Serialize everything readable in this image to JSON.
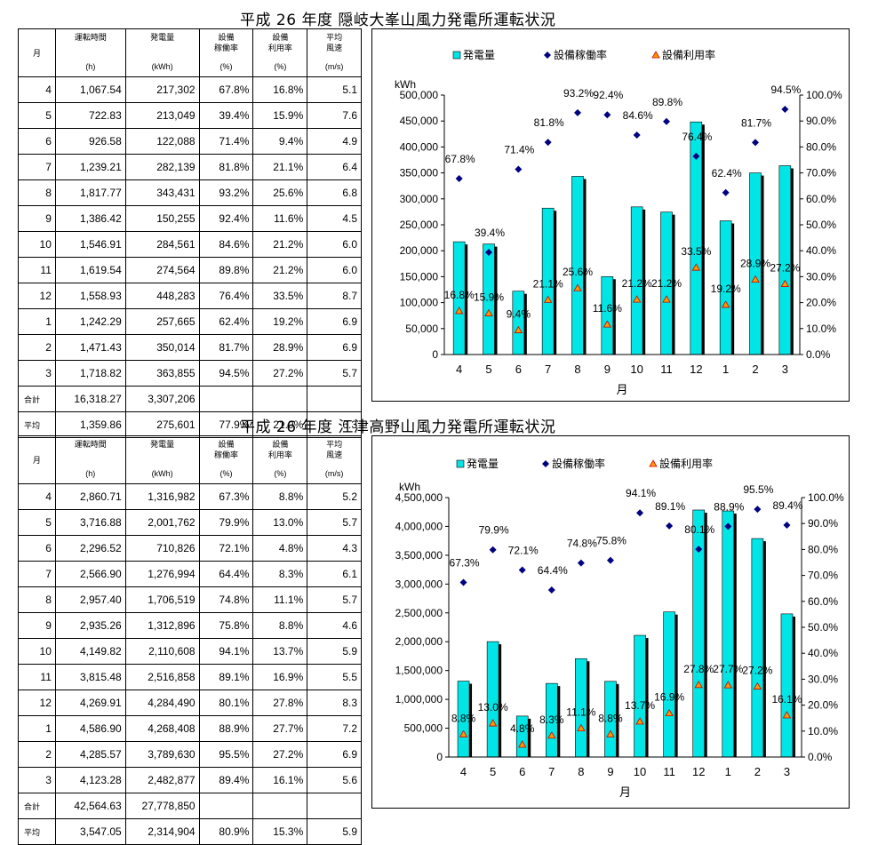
{
  "sections": [
    {
      "title": "平成  26  年度  隠岐大峯山風力発電所運転状況",
      "table": {
        "headers": [
          {
            "name": "月",
            "unit": ""
          },
          {
            "name": "運転時間",
            "unit": "(h)"
          },
          {
            "name": "発電量",
            "unit": "(kWh)"
          },
          {
            "name": "設備\n稼働率",
            "unit": "(%)"
          },
          {
            "name": "設備\n利用率",
            "unit": "(%)"
          },
          {
            "name": "平均\n風速",
            "unit": "(m/s)"
          }
        ],
        "rows": [
          [
            "4",
            "1,067.54",
            "217,302",
            "67.8%",
            "16.8%",
            "5.1"
          ],
          [
            "5",
            "722.83",
            "213,049",
            "39.4%",
            "15.9%",
            "7.6"
          ],
          [
            "6",
            "926.58",
            "122,088",
            "71.4%",
            "9.4%",
            "4.9"
          ],
          [
            "7",
            "1,239.21",
            "282,139",
            "81.8%",
            "21.1%",
            "6.4"
          ],
          [
            "8",
            "1,817.77",
            "343,431",
            "93.2%",
            "25.6%",
            "6.8"
          ],
          [
            "9",
            "1,386.42",
            "150,255",
            "92.4%",
            "11.6%",
            "4.5"
          ],
          [
            "10",
            "1,546.91",
            "284,561",
            "84.6%",
            "21.2%",
            "6.0"
          ],
          [
            "11",
            "1,619.54",
            "274,564",
            "89.8%",
            "21.2%",
            "6.0"
          ],
          [
            "12",
            "1,558.93",
            "448,283",
            "76.4%",
            "33.5%",
            "8.7"
          ],
          [
            "1",
            "1,242.29",
            "257,665",
            "62.4%",
            "19.2%",
            "6.9"
          ],
          [
            "2",
            "1,471.43",
            "350,014",
            "81.7%",
            "28.9%",
            "6.9"
          ],
          [
            "3",
            "1,718.82",
            "363,855",
            "94.5%",
            "27.2%",
            "5.7"
          ]
        ],
        "total": [
          "合計",
          "16,318.27",
          "3,307,206",
          "",
          "",
          ""
        ],
        "average": [
          "平均",
          "1,359.86",
          "275,601",
          "77.9%",
          "21.0%",
          "6.3"
        ]
      },
      "chart_data": {
        "type": "bar",
        "categories": [
          "4",
          "5",
          "6",
          "7",
          "8",
          "9",
          "10",
          "11",
          "12",
          "1",
          "2",
          "3"
        ],
        "series": [
          {
            "name": "発電量",
            "type": "bar",
            "axis": "left",
            "values": [
              217302,
              213049,
              122088,
              282139,
              343431,
              150255,
              284561,
              274564,
              448283,
              257665,
              350014,
              363855
            ]
          },
          {
            "name": "設備稼働率",
            "type": "scatter",
            "axis": "right",
            "values": [
              67.8,
              39.4,
              71.4,
              81.8,
              93.2,
              92.4,
              84.6,
              89.8,
              76.4,
              62.4,
              81.7,
              94.5
            ],
            "labels": [
              "67.8%",
              "39.4%",
              "71.4%",
              "81.8%",
              "93.2%",
              "92.4%",
              "84.6%",
              "89.8%",
              "76.4%",
              "62.4%",
              "81.7%",
              "94.5%"
            ]
          },
          {
            "name": "設備利用率",
            "type": "scatter",
            "axis": "right",
            "values": [
              16.8,
              15.9,
              9.4,
              21.1,
              25.6,
              11.6,
              21.2,
              21.2,
              33.5,
              19.2,
              28.9,
              27.2
            ],
            "labels": [
              "16.8%",
              "15.9%",
              "9.4%",
              "21.1%",
              "25.6%",
              "11.6%",
              "21.2%",
              "21.2%",
              "33.5%",
              "19.2%",
              "28.9%",
              "27.2%"
            ]
          }
        ],
        "xlabel": "月",
        "ylabel": "kWh",
        "ylim": [
          0,
          500000
        ],
        "ystep": 50000,
        "y2lim": [
          0,
          100
        ],
        "y2step": 10,
        "yticks": [
          "0",
          "50,000",
          "100,000",
          "150,000",
          "200,000",
          "250,000",
          "300,000",
          "350,000",
          "400,000",
          "450,000",
          "500,000"
        ],
        "y2ticks": [
          "0.0%",
          "10.0%",
          "20.0%",
          "30.0%",
          "40.0%",
          "50.0%",
          "60.0%",
          "70.0%",
          "80.0%",
          "90.0%",
          "100.0%"
        ],
        "legend": "top",
        "grid": false
      }
    },
    {
      "title": "平成  26  年度  江津高野山風力発電所運転状況",
      "table": {
        "headers": [
          {
            "name": "月",
            "unit": ""
          },
          {
            "name": "運転時間",
            "unit": "(h)"
          },
          {
            "name": "発電量",
            "unit": "(kWh)"
          },
          {
            "name": "設備\n稼働率",
            "unit": "(%)"
          },
          {
            "name": "設備\n利用率",
            "unit": "(%)"
          },
          {
            "name": "平均\n風速",
            "unit": "(m/s)"
          }
        ],
        "rows": [
          [
            "4",
            "2,860.71",
            "1,316,982",
            "67.3%",
            "8.8%",
            "5.2"
          ],
          [
            "5",
            "3,716.88",
            "2,001,762",
            "79.9%",
            "13.0%",
            "5.7"
          ],
          [
            "6",
            "2,296.52",
            "710,826",
            "72.1%",
            "4.8%",
            "4.3"
          ],
          [
            "7",
            "2,566.90",
            "1,276,994",
            "64.4%",
            "8.3%",
            "6.1"
          ],
          [
            "8",
            "2,957.40",
            "1,706,519",
            "74.8%",
            "11.1%",
            "5.7"
          ],
          [
            "9",
            "2,935.26",
            "1,312,896",
            "75.8%",
            "8.8%",
            "4.6"
          ],
          [
            "10",
            "4,149.82",
            "2,110,608",
            "94.1%",
            "13.7%",
            "5.9"
          ],
          [
            "11",
            "3,815.48",
            "2,516,858",
            "89.1%",
            "16.9%",
            "5.5"
          ],
          [
            "12",
            "4,269.91",
            "4,284,490",
            "80.1%",
            "27.8%",
            "8.3"
          ],
          [
            "1",
            "4,586.90",
            "4,268,408",
            "88.9%",
            "27.7%",
            "7.2"
          ],
          [
            "2",
            "4,285.57",
            "3,789,630",
            "95.5%",
            "27.2%",
            "6.9"
          ],
          [
            "3",
            "4,123.28",
            "2,482,877",
            "89.4%",
            "16.1%",
            "5.6"
          ]
        ],
        "total": [
          "合計",
          "42,564.63",
          "27,778,850",
          "",
          "",
          ""
        ],
        "average": [
          "平均",
          "3,547.05",
          "2,314,904",
          "80.9%",
          "15.3%",
          "5.9"
        ]
      },
      "chart_data": {
        "type": "bar",
        "categories": [
          "4",
          "5",
          "6",
          "7",
          "8",
          "9",
          "10",
          "11",
          "12",
          "1",
          "2",
          "3"
        ],
        "series": [
          {
            "name": "発電量",
            "type": "bar",
            "axis": "left",
            "values": [
              1316982,
              2001762,
              710826,
              1276994,
              1706519,
              1312896,
              2110608,
              2516858,
              4284490,
              4268408,
              3789630,
              2482877
            ]
          },
          {
            "name": "設備稼働率",
            "type": "scatter",
            "axis": "right",
            "values": [
              67.3,
              79.9,
              72.1,
              64.4,
              74.8,
              75.8,
              94.1,
              89.1,
              80.1,
              88.9,
              95.5,
              89.4
            ],
            "labels": [
              "67.3%",
              "79.9%",
              "72.1%",
              "64.4%",
              "74.8%",
              "75.8%",
              "94.1%",
              "89.1%",
              "80.1%",
              "88.9%",
              "95.5%",
              "89.4%"
            ]
          },
          {
            "name": "設備利用率",
            "type": "scatter",
            "axis": "right",
            "values": [
              8.8,
              13.0,
              4.8,
              8.3,
              11.1,
              8.8,
              13.7,
              16.9,
              27.8,
              27.7,
              27.2,
              16.1
            ],
            "labels": [
              "8.8%",
              "13.0%",
              "4.8%",
              "8.3%",
              "11.1%",
              "8.8%",
              "13.7%",
              "16.9%",
              "27.8%",
              "27.7%",
              "27.2%",
              "16.1%"
            ]
          }
        ],
        "xlabel": "月",
        "ylabel": "kWh",
        "ylim": [
          0,
          4500000
        ],
        "ystep": 500000,
        "y2lim": [
          0,
          100
        ],
        "y2step": 10,
        "yticks": [
          "0",
          "500,000",
          "1,000,000",
          "1,500,000",
          "2,000,000",
          "2,500,000",
          "3,000,000",
          "3,500,000",
          "4,000,000",
          "4,500,000"
        ],
        "y2ticks": [
          "0.0%",
          "10.0%",
          "20.0%",
          "30.0%",
          "40.0%",
          "50.0%",
          "60.0%",
          "70.0%",
          "80.0%",
          "90.0%",
          "100.0%"
        ],
        "legend": "top",
        "grid": false
      }
    }
  ],
  "colors": {
    "bar_fill": "#00e5e5",
    "bar_shadow": "#000000",
    "kado_marker": "#000080",
    "riyo_marker_fill": "#ff9900",
    "riyo_marker_stroke": "#cc0000"
  }
}
